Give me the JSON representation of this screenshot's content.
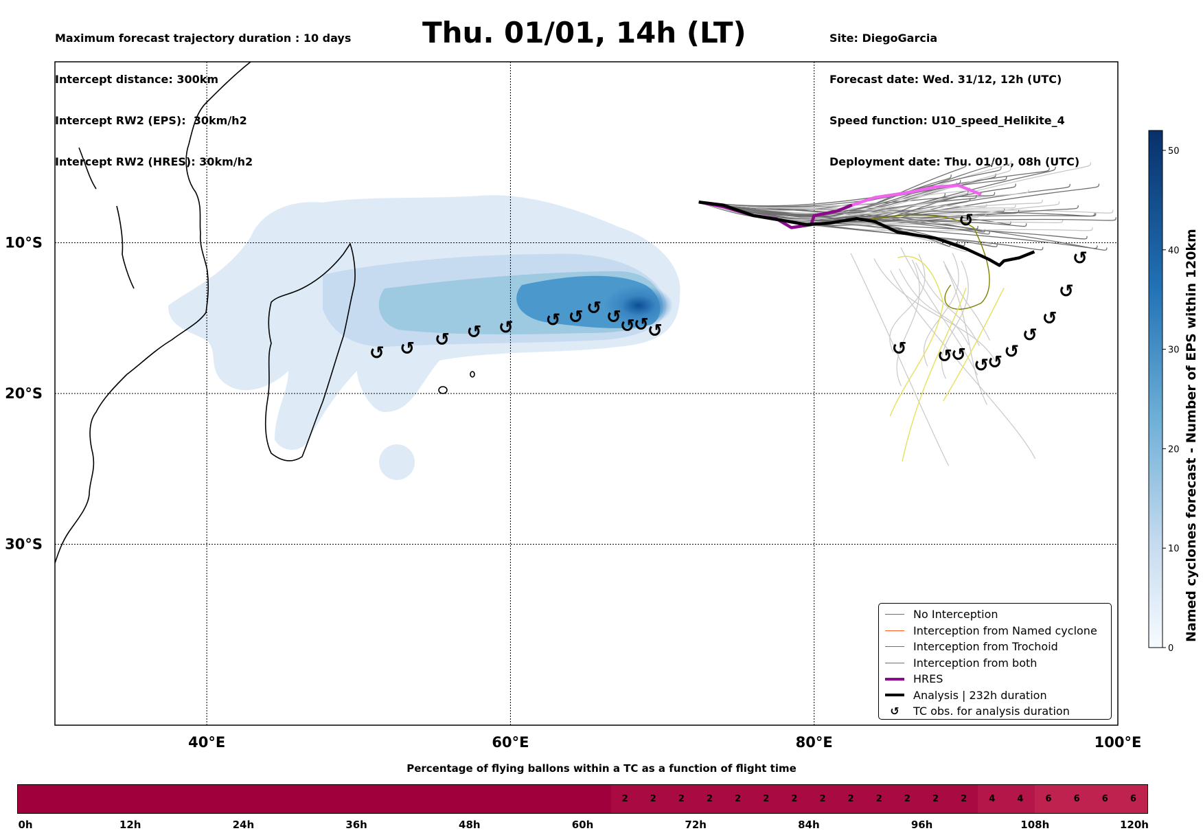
{
  "header": {
    "title": "Thu. 01/01, 14h (LT)",
    "left_lines": [
      "Maximum forecast trajectory duration : 10 days",
      "Intercept distance: 300km",
      "Intercept RW2 (EPS):  30km/h2",
      "Intercept RW2 (HRES): 30km/h2"
    ],
    "right_lines": [
      "Site: DiegoGarcia",
      "Forecast date: Wed. 31/12, 12h (UTC)",
      "Speed function: U10_speed_Helikite_4",
      "Deployment date: Thu. 01/01, 08h (UTC)"
    ]
  },
  "map": {
    "lon_range": [
      30,
      100
    ],
    "lat_range": [
      -42,
      2
    ],
    "lat_ticks": [
      {
        "value": -10,
        "label": "10°S"
      },
      {
        "value": -20,
        "label": "20°S"
      },
      {
        "value": -30,
        "label": "30°S"
      }
    ],
    "lon_ticks": [
      {
        "value": 40,
        "label": "40°E"
      },
      {
        "value": 60,
        "label": "60°E"
      },
      {
        "value": 80,
        "label": "80°E"
      },
      {
        "value": 100,
        "label": "100°E"
      }
    ],
    "colors": {
      "no_interception": "#6e6e6e",
      "no_interception_late": "#c8c8c8",
      "named_cyclone": "#ff5a1f",
      "trochoid": "#808000",
      "trochoid_light": "#e6e05a",
      "both": "#2ca02c",
      "hres": "#8b0a8b",
      "hres_late": "#ee66ee",
      "analysis": "#000000",
      "density_low": "#deebf7",
      "density_high": "#08306b"
    },
    "tc_observations_west": [
      [
        51.2,
        -17.3
      ],
      [
        53.2,
        -17.0
      ],
      [
        55.5,
        -16.4
      ],
      [
        57.6,
        -15.9
      ],
      [
        59.7,
        -15.6
      ],
      [
        62.8,
        -15.1
      ],
      [
        64.3,
        -14.9
      ],
      [
        65.5,
        -14.3
      ],
      [
        66.8,
        -14.9
      ],
      [
        67.7,
        -15.5
      ],
      [
        68.3,
        -15.4
      ],
      [
        69.3,
        -15.8
      ]
    ],
    "tc_observations_east": [
      [
        90.0,
        -8.5
      ],
      [
        85.6,
        -17.0
      ],
      [
        88.6,
        -17.5
      ],
      [
        89.2,
        -17.4
      ],
      [
        91.0,
        -18.1
      ],
      [
        91.9,
        -17.9
      ],
      [
        93.0,
        -17.2
      ],
      [
        94.2,
        -16.1
      ],
      [
        95.5,
        -15.0
      ],
      [
        96.6,
        -13.2
      ],
      [
        97.5,
        -11.0
      ]
    ]
  },
  "legend": {
    "items": [
      {
        "label": "No Interception",
        "style": "thin",
        "color": "#6e6e6e"
      },
      {
        "label": "Interception from Named cyclone",
        "style": "thin",
        "color": "#ff5a1f"
      },
      {
        "label": "Interception from Trochoid",
        "style": "thin",
        "color": "#808000"
      },
      {
        "label": "Interception from both",
        "style": "thin",
        "color": "#2ca02c"
      },
      {
        "label": "HRES",
        "style": "thick",
        "color": "#8b0a8b"
      },
      {
        "label": "Analysis | 232h duration",
        "style": "thick",
        "color": "#000000"
      },
      {
        "label": "TC obs. for analysis duration",
        "style": "marker",
        "color": "#000000"
      }
    ]
  },
  "colorbar": {
    "title": "Named cyclones forecast - Number of EPS within 120km",
    "range": [
      0,
      52
    ],
    "ticks": [
      "0",
      "10",
      "20",
      "30",
      "40",
      "50"
    ]
  },
  "timebar": {
    "title": "Percentage of flying ballons within a TC as a function of flight time",
    "values": [
      "",
      "",
      "",
      "",
      "",
      "",
      "",
      "",
      "",
      "",
      "",
      "",
      "",
      "",
      "",
      "",
      "",
      "",
      "",
      "",
      "",
      "2",
      "2",
      "2",
      "2",
      "2",
      "2",
      "2",
      "2",
      "2",
      "2",
      "2",
      "2",
      "2",
      "4",
      "4",
      "6",
      "6",
      "6",
      "6"
    ],
    "tick_labels": [
      "0h",
      "12h",
      "24h",
      "36h",
      "48h",
      "60h",
      "72h",
      "84h",
      "96h",
      "108h",
      "120h"
    ],
    "colors": {
      "zero": "#a0003c",
      "two": "#a90a42",
      "four": "#b4164a",
      "six": "#c0224f"
    }
  }
}
